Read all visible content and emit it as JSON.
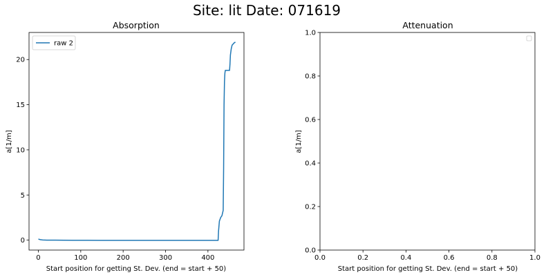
{
  "figure": {
    "suptitle": "Site: lit Date: 071619"
  },
  "chart_data": [
    {
      "type": "line",
      "title": "Absorption",
      "xlabel": "Start position for getting St. Dev. (end = start + 50)",
      "ylabel": "a[1/m]",
      "xlim": [
        -22,
        485
      ],
      "ylim": [
        -1.1,
        23.0
      ],
      "xticks": [
        0,
        100,
        200,
        300,
        400
      ],
      "yticks": [
        0,
        5,
        10,
        15,
        20
      ],
      "grid": false,
      "legend": {
        "placement": "upper-left",
        "entries": [
          "raw 2"
        ]
      },
      "series": [
        {
          "name": "raw 2",
          "color": "#1f77b4",
          "x": [
            0,
            5,
            10,
            20,
            40,
            60,
            80,
            100,
            150,
            200,
            250,
            300,
            350,
            400,
            424,
            425,
            427,
            430,
            433,
            436,
            437,
            438,
            439,
            440,
            441,
            443,
            445,
            448,
            451,
            452,
            453,
            455,
            457,
            459,
            461,
            463,
            465
          ],
          "y": [
            0.12,
            0.05,
            0.02,
            0.0,
            0.0,
            -0.01,
            -0.02,
            -0.02,
            -0.03,
            -0.03,
            -0.03,
            -0.03,
            -0.03,
            -0.03,
            -0.03,
            1.0,
            2.1,
            2.5,
            2.7,
            3.3,
            8.0,
            15.0,
            17.5,
            18.5,
            18.8,
            18.8,
            18.8,
            18.8,
            18.8,
            19.5,
            20.5,
            21.2,
            21.6,
            21.7,
            21.8,
            21.9,
            21.9
          ]
        }
      ]
    },
    {
      "type": "line",
      "title": "Attenuation",
      "xlabel": "Start position for getting St. Dev. (end = start + 50)",
      "ylabel": "a[1/m]",
      "xlim": [
        0.0,
        1.0
      ],
      "ylim": [
        0.0,
        1.0
      ],
      "xticks": [
        "0.0",
        "0.2",
        "0.4",
        "0.6",
        "0.8",
        "1.0"
      ],
      "yticks": [
        "0.0",
        "0.2",
        "0.4",
        "0.6",
        "0.8",
        "1.0"
      ],
      "grid": false,
      "legend": {
        "placement": "upper-right",
        "entries": []
      },
      "series": []
    }
  ]
}
